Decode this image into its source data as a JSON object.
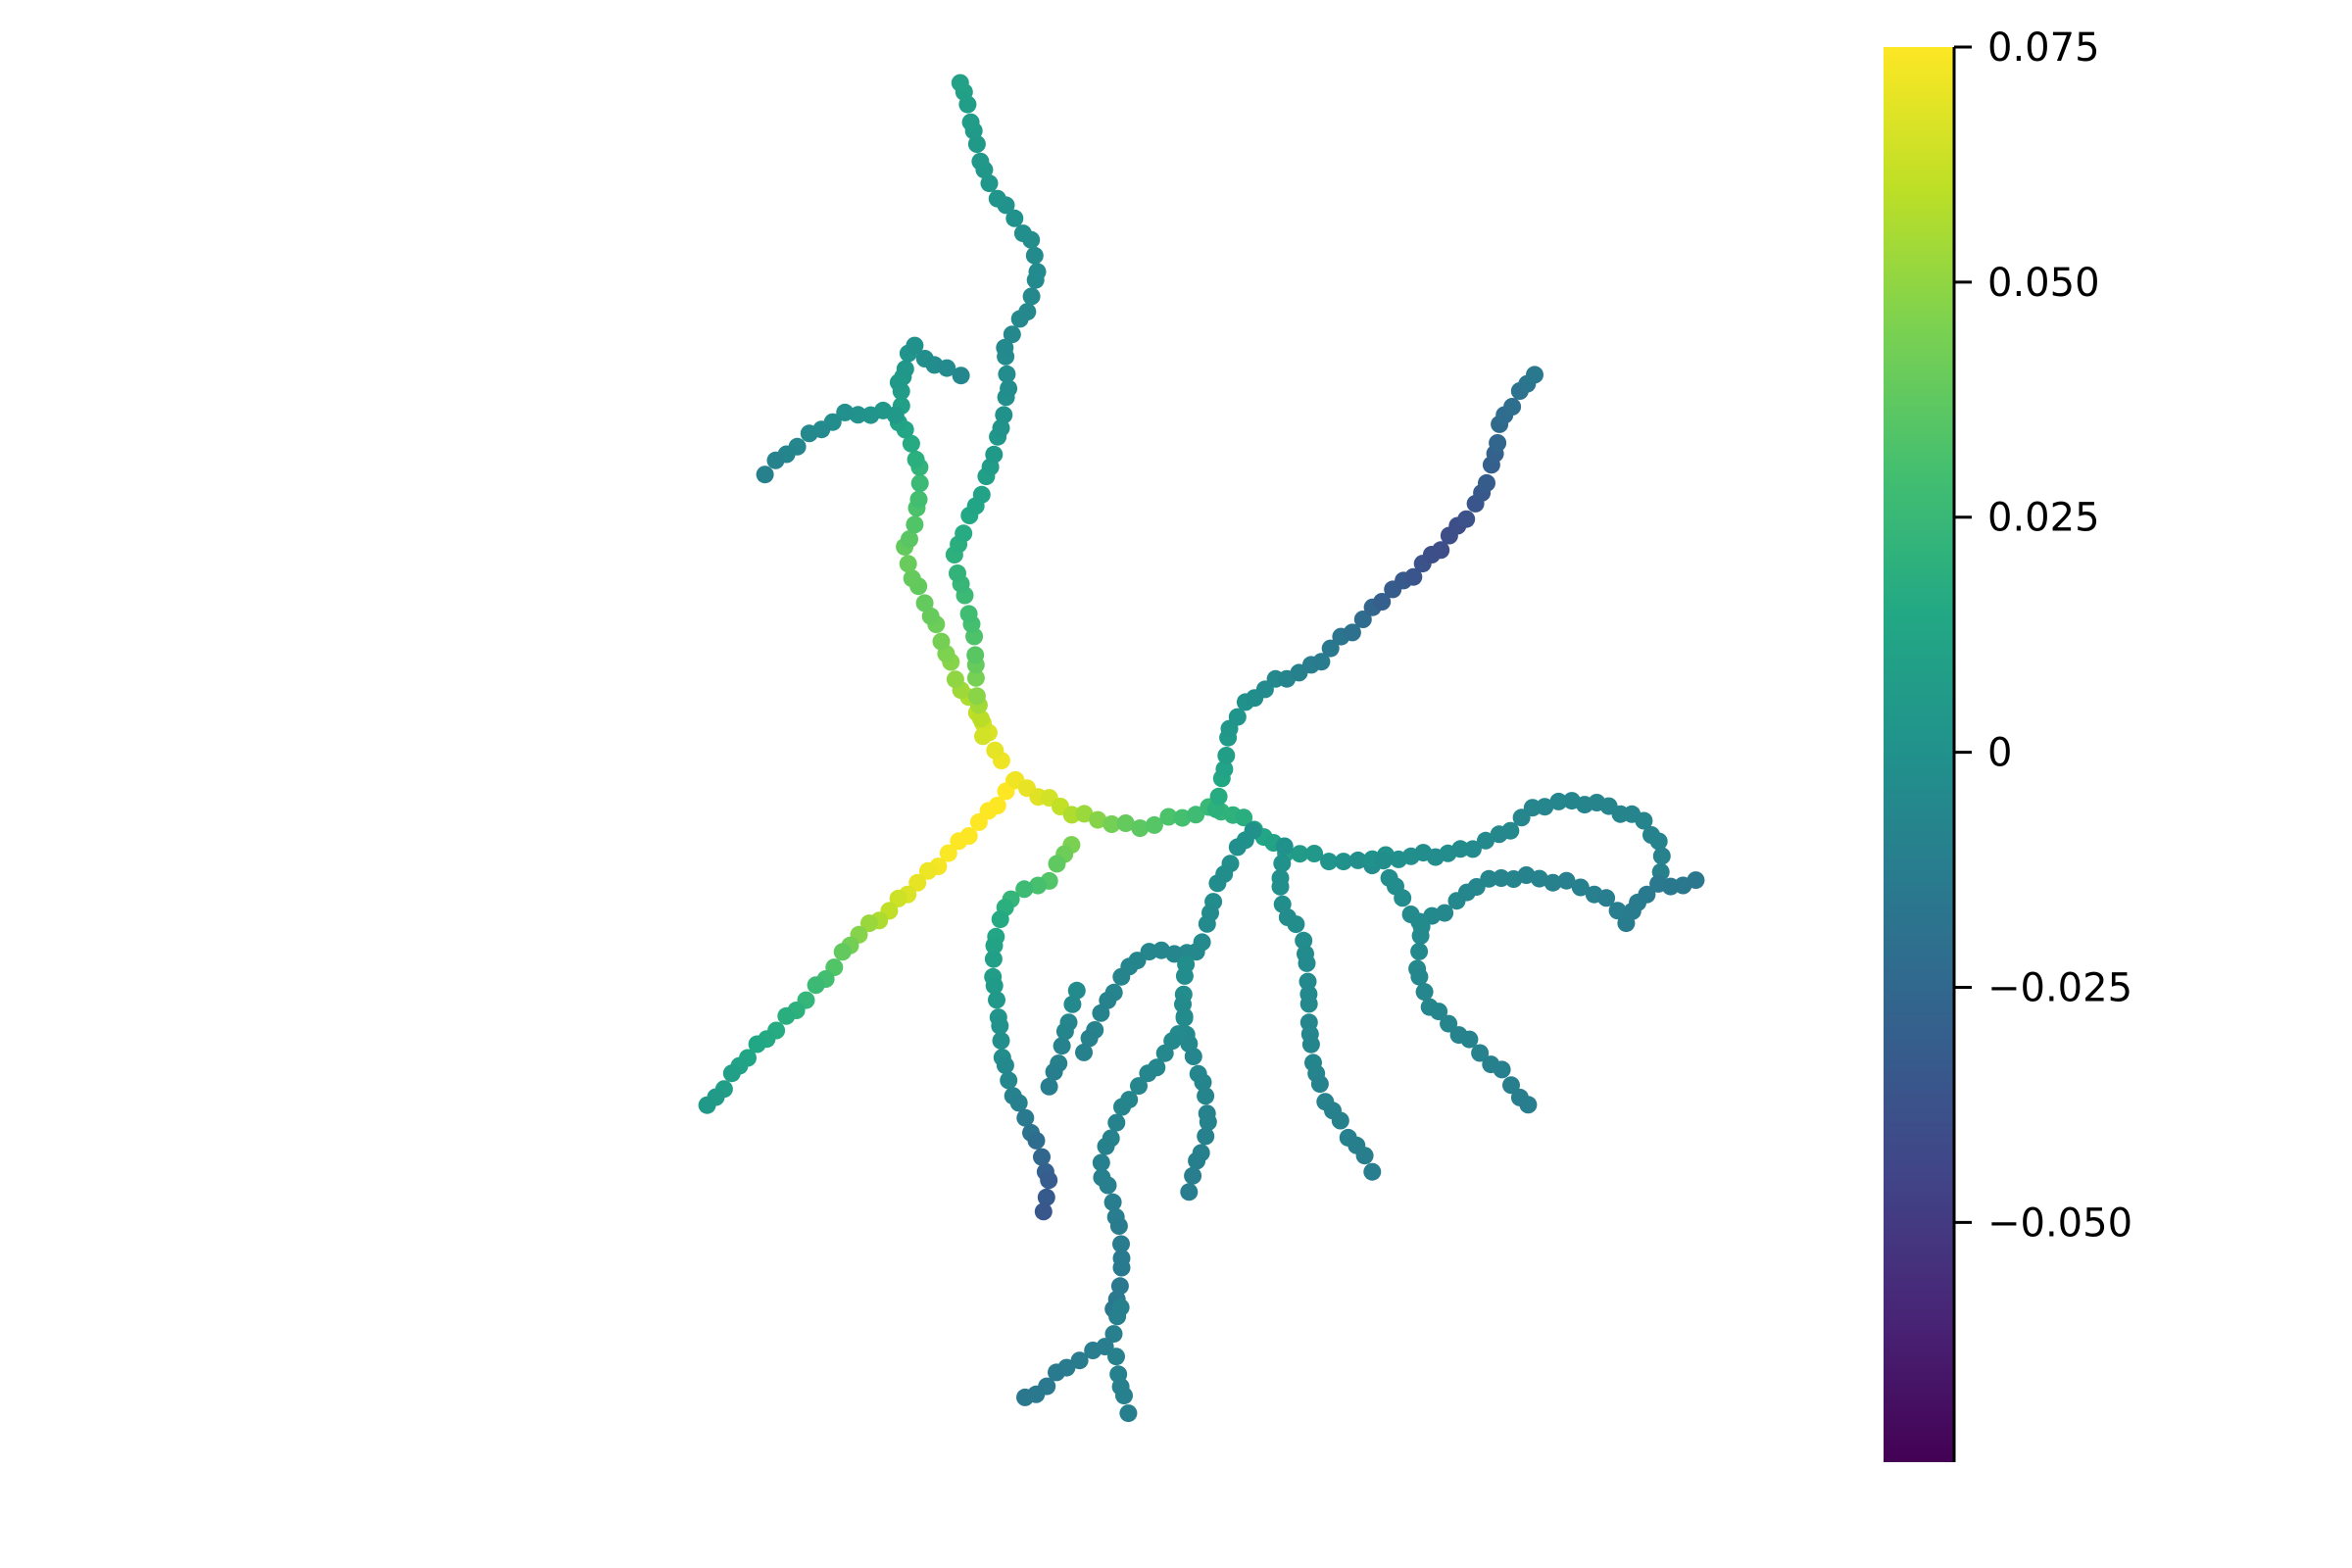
{
  "chart_data": {
    "type": "scatter",
    "title": "",
    "xlabel": "",
    "ylabel": "",
    "axes_visible": false,
    "grid": false,
    "colormap": "viridis",
    "colorbar": {
      "position": "right",
      "range": [
        -0.0755,
        0.075
      ],
      "ticks": [
        0.075,
        0.05,
        0.025,
        0,
        -0.025,
        -0.05
      ],
      "tick_labels": [
        "0.075",
        "0.050",
        "0.025",
        "0",
        "−0.025",
        "−0.050"
      ]
    },
    "xlim": [
      -6,
      6
    ],
    "ylim": [
      -5.4,
      5.4
    ],
    "branches": [
      {
        "values": [
          0.076,
          0.076,
          0.075,
          0.07,
          0.06,
          0.045,
          0.03,
          0.02,
          0.015,
          0.01,
          0.005
        ],
        "points": [
          [
            -1.2,
            -0.06
          ],
          [
            -1.53,
            -0.36
          ],
          [
            -1.9,
            -0.7
          ],
          [
            -2.3,
            -1.0
          ],
          [
            -2.65,
            -1.2
          ],
          [
            -2.9,
            -1.5
          ],
          [
            -3.15,
            -1.75
          ],
          [
            -3.4,
            -1.95
          ],
          [
            -3.62,
            -2.1
          ],
          [
            -3.8,
            -2.28
          ],
          [
            -3.97,
            -2.45
          ]
        ]
      },
      {
        "values": [
          0.072,
          0.066,
          0.058,
          0.05,
          0.045,
          0.04,
          0.038,
          0.04,
          0.035,
          0.03,
          0.022,
          0.015,
          0.01,
          0.005
        ],
        "points": [
          [
            -1.3,
            0.1
          ],
          [
            -1.48,
            0.45
          ],
          [
            -1.68,
            0.65
          ],
          [
            -1.85,
            0.95
          ],
          [
            -2.0,
            1.25
          ],
          [
            -2.1,
            1.45
          ],
          [
            -2.15,
            1.65
          ],
          [
            -2.05,
            1.85
          ],
          [
            -2.03,
            2.1
          ],
          [
            -2.05,
            2.25
          ],
          [
            -2.15,
            2.45
          ],
          [
            -2.25,
            2.6
          ],
          [
            -2.2,
            2.75
          ],
          [
            -2.22,
            2.9
          ]
        ]
      },
      {
        "values": [
          0.005,
          0.003,
          0.0,
          -0.002,
          -0.005,
          -0.006,
          -0.008,
          -0.01
        ],
        "points": [
          [
            -2.25,
            2.65
          ],
          [
            -2.4,
            2.65
          ],
          [
            -2.6,
            2.65
          ],
          [
            -2.8,
            2.63
          ],
          [
            -2.95,
            2.53
          ],
          [
            -3.1,
            2.45
          ],
          [
            -3.25,
            2.33
          ],
          [
            -3.4,
            2.22
          ]
        ]
      },
      {
        "values": [
          0.005,
          0.003,
          0.0,
          -0.002,
          -0.004,
          -0.006
        ],
        "points": [
          [
            -2.2,
            2.9
          ],
          [
            -2.15,
            3.05
          ],
          [
            -2.1,
            3.15
          ],
          [
            -2.0,
            3.1
          ],
          [
            -1.85,
            2.98
          ],
          [
            -1.65,
            2.95
          ]
        ]
      },
      {
        "values": [
          0.065,
          0.05,
          0.038,
          0.03,
          0.025,
          0.02,
          0.015,
          0.01,
          0.005,
          0.0,
          -0.003,
          -0.005,
          -0.006,
          -0.005,
          -0.003,
          0.0,
          0.003,
          0.005,
          0.007,
          0.01
        ],
        "points": [
          [
            -1.45,
            0.3
          ],
          [
            -1.55,
            0.65
          ],
          [
            -1.57,
            1.0
          ],
          [
            -1.6,
            1.2
          ],
          [
            -1.65,
            1.4
          ],
          [
            -1.7,
            1.6
          ],
          [
            -1.62,
            1.8
          ],
          [
            -1.5,
            2.05
          ],
          [
            -1.4,
            2.35
          ],
          [
            -1.3,
            2.6
          ],
          [
            -1.22,
            2.85
          ],
          [
            -1.25,
            3.15
          ],
          [
            -1.08,
            3.4
          ],
          [
            -1.0,
            3.68
          ],
          [
            -1.05,
            3.9
          ],
          [
            -1.2,
            4.1
          ],
          [
            -1.4,
            4.35
          ],
          [
            -1.52,
            4.65
          ],
          [
            -1.62,
            4.9
          ],
          [
            -1.7,
            5.1
          ]
        ]
      },
      {
        "values": [
          0.072,
          0.068,
          0.06,
          0.05,
          0.04,
          0.035,
          0.03,
          0.025,
          0.02,
          0.015,
          0.01,
          0.005,
          0.0,
          -0.003
        ],
        "points": [
          [
            -1.2,
            -0.06
          ],
          [
            -0.9,
            -0.18
          ],
          [
            -0.6,
            -0.3
          ],
          [
            -0.3,
            -0.35
          ],
          [
            -0.1,
            -0.4
          ],
          [
            0.1,
            -0.35
          ],
          [
            0.35,
            -0.3
          ],
          [
            0.6,
            -0.25
          ],
          [
            0.8,
            -0.3
          ],
          [
            1.0,
            -0.4
          ],
          [
            1.2,
            -0.55
          ],
          [
            1.5,
            -0.6
          ],
          [
            1.8,
            -0.65
          ],
          [
            2.0,
            -0.65
          ]
        ]
      },
      {
        "values": [
          0.02,
          0.012,
          0.005,
          0.0,
          -0.005,
          -0.01,
          -0.015,
          -0.02,
          -0.03,
          -0.035,
          -0.04,
          -0.04,
          -0.035,
          -0.03,
          -0.025,
          -0.02,
          -0.015
        ],
        "points": [
          [
            0.65,
            -0.25
          ],
          [
            0.7,
            0.0
          ],
          [
            0.72,
            0.35
          ],
          [
            0.9,
            0.55
          ],
          [
            1.2,
            0.7
          ],
          [
            1.4,
            0.75
          ],
          [
            1.55,
            0.8
          ],
          [
            1.7,
            0.95
          ],
          [
            1.9,
            1.1
          ],
          [
            2.1,
            1.3
          ],
          [
            2.35,
            1.45
          ],
          [
            2.7,
            1.7
          ],
          [
            3.0,
            2.0
          ],
          [
            3.1,
            2.3
          ],
          [
            3.15,
            2.6
          ],
          [
            3.35,
            2.8
          ],
          [
            3.5,
            2.95
          ]
        ]
      },
      {
        "values": [
          0.0,
          -0.002,
          -0.004,
          -0.006,
          -0.007,
          -0.008,
          -0.008,
          -0.01
        ],
        "points": [
          [
            2.0,
            -0.62
          ],
          [
            2.4,
            -0.6
          ],
          [
            2.8,
            -0.58
          ],
          [
            3.2,
            -0.45
          ],
          [
            3.5,
            -0.22
          ],
          [
            3.9,
            -0.2
          ],
          [
            4.2,
            -0.25
          ],
          [
            4.5,
            -0.35
          ],
          [
            4.65,
            -0.55
          ],
          [
            4.62,
            -0.7
          ]
        ]
      },
      {
        "values": [
          -0.002,
          -0.004,
          -0.006,
          -0.008,
          -0.01,
          -0.012,
          -0.014,
          -0.016
        ],
        "points": [
          [
            2.15,
            -0.65
          ],
          [
            2.3,
            -0.9
          ],
          [
            2.45,
            -1.1
          ],
          [
            2.75,
            -0.95
          ],
          [
            2.95,
            -0.8
          ],
          [
            3.3,
            -0.75
          ],
          [
            3.7,
            -0.78
          ],
          [
            4.0,
            -0.85
          ],
          [
            4.2,
            -0.98
          ],
          [
            4.3,
            -1.1
          ],
          [
            4.4,
            -0.9
          ],
          [
            4.6,
            -0.82
          ],
          [
            4.95,
            -0.8
          ]
        ]
      },
      {
        "values": [
          -0.004,
          -0.006,
          -0.008,
          -0.01,
          -0.012
        ],
        "points": [
          [
            2.45,
            -1.1
          ],
          [
            2.4,
            -1.45
          ],
          [
            2.55,
            -1.7
          ],
          [
            2.9,
            -1.95
          ],
          [
            3.2,
            -2.2
          ],
          [
            3.4,
            -2.45
          ]
        ]
      },
      {
        "values": [
          0.0,
          -0.002,
          -0.004,
          -0.006,
          -0.008,
          -0.01,
          -0.012
        ],
        "points": [
          [
            1.25,
            -0.55
          ],
          [
            1.22,
            -0.8
          ],
          [
            1.25,
            -1.0
          ],
          [
            1.4,
            -1.2
          ],
          [
            1.42,
            -1.5
          ],
          [
            1.45,
            -1.8
          ],
          [
            1.5,
            -2.05
          ],
          [
            1.6,
            -2.35
          ],
          [
            1.8,
            -2.65
          ],
          [
            2.0,
            -2.9
          ]
        ]
      },
      {
        "values": [
          0.0,
          -0.003,
          -0.006,
          -0.008,
          -0.01
        ],
        "points": [
          [
            0.95,
            -0.4
          ],
          [
            0.75,
            -0.6
          ],
          [
            0.6,
            -0.85
          ],
          [
            0.55,
            -1.15
          ],
          [
            0.45,
            -1.35
          ],
          [
            0.3,
            -1.3
          ],
          [
            0.1,
            -1.3
          ],
          [
            -0.1,
            -1.35
          ],
          [
            -0.3,
            -1.55
          ],
          [
            -0.45,
            -1.8
          ],
          [
            -0.55,
            -2.05
          ]
        ]
      },
      {
        "values": [
          -0.002,
          -0.004,
          -0.006,
          -0.008,
          -0.01,
          -0.012
        ],
        "points": [
          [
            0.35,
            -1.4
          ],
          [
            0.35,
            -1.7
          ],
          [
            0.4,
            -2.0
          ],
          [
            0.5,
            -2.3
          ],
          [
            0.53,
            -2.6
          ],
          [
            0.45,
            -2.85
          ],
          [
            0.4,
            -3.05
          ]
        ]
      },
      {
        "values": [
          -0.004,
          -0.006,
          -0.008,
          -0.01,
          -0.012,
          -0.014,
          -0.015
        ],
        "points": [
          [
            0.35,
            -1.8
          ],
          [
            0.2,
            -2.0
          ],
          [
            0.0,
            -2.2
          ],
          [
            -0.2,
            -2.4
          ],
          [
            -0.3,
            -2.65
          ],
          [
            -0.4,
            -2.9
          ],
          [
            -0.3,
            -3.1
          ],
          [
            -0.25,
            -3.4
          ],
          [
            -0.25,
            -3.7
          ],
          [
            -0.3,
            -3.95
          ]
        ]
      },
      {
        "values": [
          -0.01,
          -0.012,
          -0.014,
          -0.016
        ],
        "points": [
          [
            -0.25,
            -3.9
          ],
          [
            -0.3,
            -4.15
          ],
          [
            -0.45,
            -4.25
          ],
          [
            -0.7,
            -4.35
          ],
          [
            -0.9,
            -4.5
          ],
          [
            -1.1,
            -4.6
          ]
        ]
      },
      {
        "values": [
          -0.01,
          -0.011
        ],
        "points": [
          [
            -0.25,
            -4.3
          ],
          [
            -0.22,
            -4.55
          ],
          [
            -0.18,
            -4.68
          ]
        ]
      },
      {
        "values": [
          0.045,
          0.035,
          0.025,
          0.015,
          0.01,
          0.005,
          0.0,
          -0.005,
          -0.01,
          -0.02,
          -0.03,
          -0.035
        ],
        "points": [
          [
            -0.7,
            -0.5
          ],
          [
            -0.9,
            -0.8
          ],
          [
            -1.2,
            -0.9
          ],
          [
            -1.35,
            -1.2
          ],
          [
            -1.4,
            -1.5
          ],
          [
            -1.35,
            -1.8
          ],
          [
            -1.3,
            -2.05
          ],
          [
            -1.2,
            -2.3
          ],
          [
            -1.05,
            -2.55
          ],
          [
            -0.95,
            -2.8
          ],
          [
            -0.9,
            -3.0
          ],
          [
            -0.95,
            -3.2
          ]
        ]
      },
      {
        "values": [
          -0.004,
          -0.008,
          -0.012
        ],
        "points": [
          [
            -0.6,
            -1.6
          ],
          [
            -0.7,
            -1.85
          ],
          [
            -0.8,
            -2.1
          ],
          [
            -0.9,
            -2.3
          ]
        ]
      }
    ]
  }
}
